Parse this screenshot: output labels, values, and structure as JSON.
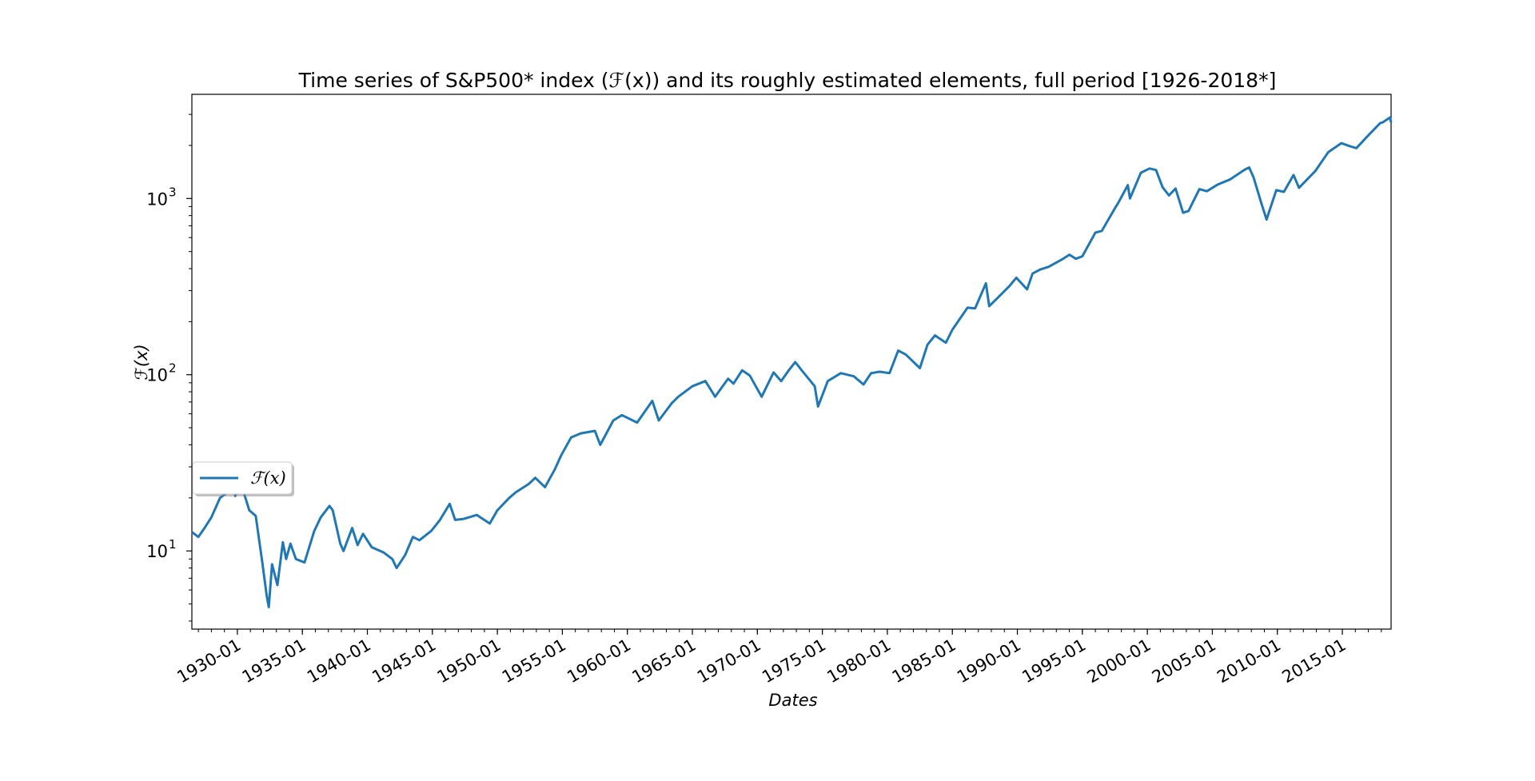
{
  "chart_data": {
    "type": "line",
    "title": "Time series of S&P500* index (ℱ(x)) and its roughly estimated elements, full period [1926-2018*]",
    "xlabel": "Dates",
    "ylabel": "ℱ(x)",
    "yscale": "log",
    "xlim": [
      "1926-07",
      "2018-10"
    ],
    "ylim": [
      3.6,
      3900
    ],
    "x_ticks": [
      "1930-01",
      "1935-01",
      "1940-01",
      "1945-01",
      "1950-01",
      "1955-01",
      "1960-01",
      "1965-01",
      "1970-01",
      "1975-01",
      "1980-01",
      "1985-01",
      "1990-01",
      "1995-01",
      "2000-01",
      "2005-01",
      "2010-01",
      "2015-01"
    ],
    "y_ticks": [
      {
        "value": 10,
        "label": "10",
        "exp": "1"
      },
      {
        "value": 100,
        "label": "10",
        "exp": "2"
      },
      {
        "value": 1000,
        "label": "10",
        "exp": "3"
      }
    ],
    "grid": false,
    "legend_position": "center-left",
    "color": "#1f77b4",
    "series": [
      {
        "name": "ℱ(x)",
        "points": [
          [
            "1926-07",
            12.8
          ],
          [
            "1927-01",
            12.0
          ],
          [
            "1927-06",
            13.3
          ],
          [
            "1928-01",
            15.5
          ],
          [
            "1928-09",
            20.0
          ],
          [
            "1929-04",
            21.5
          ],
          [
            "1929-09",
            30.0
          ],
          [
            "1929-11",
            20.5
          ],
          [
            "1930-04",
            24.5
          ],
          [
            "1930-12",
            17.0
          ],
          [
            "1931-06",
            15.8
          ],
          [
            "1931-12",
            8.6
          ],
          [
            "1932-04",
            5.6
          ],
          [
            "1932-06",
            4.8
          ],
          [
            "1932-09",
            8.4
          ],
          [
            "1933-02",
            6.4
          ],
          [
            "1933-07",
            11.2
          ],
          [
            "1933-10",
            9.0
          ],
          [
            "1934-02",
            11.0
          ],
          [
            "1934-07",
            9.0
          ],
          [
            "1935-03",
            8.6
          ],
          [
            "1935-12",
            13.0
          ],
          [
            "1936-06",
            15.5
          ],
          [
            "1937-02",
            18.0
          ],
          [
            "1937-05",
            17.0
          ],
          [
            "1937-12",
            11.0
          ],
          [
            "1938-03",
            10.0
          ],
          [
            "1938-11",
            13.5
          ],
          [
            "1939-04",
            10.8
          ],
          [
            "1939-09",
            12.5
          ],
          [
            "1940-05",
            10.5
          ],
          [
            "1941-04",
            9.8
          ],
          [
            "1941-12",
            9.0
          ],
          [
            "1942-04",
            8.0
          ],
          [
            "1942-12",
            9.5
          ],
          [
            "1943-07",
            12.0
          ],
          [
            "1944-01",
            11.5
          ],
          [
            "1944-12",
            13.0
          ],
          [
            "1945-08",
            15.0
          ],
          [
            "1946-05",
            18.5
          ],
          [
            "1946-10",
            15.0
          ],
          [
            "1947-06",
            15.2
          ],
          [
            "1948-06",
            16.0
          ],
          [
            "1949-06",
            14.3
          ],
          [
            "1950-01",
            17.0
          ],
          [
            "1950-12",
            20.0
          ],
          [
            "1951-06",
            21.5
          ],
          [
            "1952-06",
            24.0
          ],
          [
            "1952-12",
            26.0
          ],
          [
            "1953-09",
            23.0
          ],
          [
            "1954-06",
            29.0
          ],
          [
            "1954-12",
            35.0
          ],
          [
            "1955-09",
            44.0
          ],
          [
            "1956-06",
            46.5
          ],
          [
            "1957-07",
            48.0
          ],
          [
            "1957-12",
            40.0
          ],
          [
            "1958-12",
            55.0
          ],
          [
            "1959-08",
            59.0
          ],
          [
            "1960-10",
            53.5
          ],
          [
            "1961-12",
            71.0
          ],
          [
            "1962-06",
            55.0
          ],
          [
            "1963-06",
            69.0
          ],
          [
            "1963-12",
            75.0
          ],
          [
            "1965-01",
            86.0
          ],
          [
            "1966-01",
            92.0
          ],
          [
            "1966-10",
            75.0
          ],
          [
            "1967-10",
            95.0
          ],
          [
            "1968-03",
            89.0
          ],
          [
            "1968-11",
            106.0
          ],
          [
            "1969-06",
            99.0
          ],
          [
            "1970-05",
            75.0
          ],
          [
            "1971-04",
            103.0
          ],
          [
            "1971-11",
            92.0
          ],
          [
            "1972-06",
            106.0
          ],
          [
            "1972-12",
            118.0
          ],
          [
            "1973-07",
            104.0
          ],
          [
            "1974-06",
            86.0
          ],
          [
            "1974-09",
            66.0
          ],
          [
            "1975-06",
            92.0
          ],
          [
            "1976-06",
            102.0
          ],
          [
            "1977-06",
            98.0
          ],
          [
            "1978-03",
            88.0
          ],
          [
            "1978-10",
            102.0
          ],
          [
            "1979-06",
            104.0
          ],
          [
            "1980-03",
            102.0
          ],
          [
            "1980-11",
            137.0
          ],
          [
            "1981-06",
            130.0
          ],
          [
            "1982-07",
            109.0
          ],
          [
            "1983-02",
            148.0
          ],
          [
            "1983-09",
            167.0
          ],
          [
            "1984-07",
            152.0
          ],
          [
            "1985-01",
            180.0
          ],
          [
            "1986-03",
            240.0
          ],
          [
            "1986-10",
            238.0
          ],
          [
            "1987-08",
            330.0
          ],
          [
            "1987-11",
            245.0
          ],
          [
            "1988-06",
            270.0
          ],
          [
            "1989-06",
            320.0
          ],
          [
            "1989-12",
            355.0
          ],
          [
            "1990-10",
            305.0
          ],
          [
            "1991-03",
            375.0
          ],
          [
            "1991-10",
            395.0
          ],
          [
            "1992-06",
            410.0
          ],
          [
            "1993-06",
            450.0
          ],
          [
            "1994-01",
            480.0
          ],
          [
            "1994-07",
            455.0
          ],
          [
            "1995-01",
            470.0
          ],
          [
            "1996-01",
            640.0
          ],
          [
            "1996-07",
            655.0
          ],
          [
            "1997-08",
            900.0
          ],
          [
            "1997-10",
            940.0
          ],
          [
            "1998-07",
            1190.0
          ],
          [
            "1998-09",
            1000.0
          ],
          [
            "1999-07",
            1400.0
          ],
          [
            "2000-03",
            1480.0
          ],
          [
            "2000-09",
            1450.0
          ],
          [
            "2001-03",
            1160.0
          ],
          [
            "2001-09",
            1040.0
          ],
          [
            "2002-03",
            1140.0
          ],
          [
            "2002-10",
            830.0
          ],
          [
            "2003-03",
            850.0
          ],
          [
            "2004-01",
            1130.0
          ],
          [
            "2004-08",
            1100.0
          ],
          [
            "2005-06",
            1200.0
          ],
          [
            "2006-05",
            1280.0
          ],
          [
            "2007-07",
            1460.0
          ],
          [
            "2007-11",
            1500.0
          ],
          [
            "2008-03",
            1320.0
          ],
          [
            "2008-10",
            950.0
          ],
          [
            "2009-03",
            760.0
          ],
          [
            "2009-12",
            1115.0
          ],
          [
            "2010-07",
            1090.0
          ],
          [
            "2011-04",
            1360.0
          ],
          [
            "2011-09",
            1150.0
          ],
          [
            "2012-12",
            1430.0
          ],
          [
            "2013-12",
            1830.0
          ],
          [
            "2014-12",
            2060.0
          ],
          [
            "2015-08",
            1980.0
          ],
          [
            "2016-02",
            1930.0
          ],
          [
            "2016-12",
            2250.0
          ],
          [
            "2017-12",
            2680.0
          ],
          [
            "2018-02",
            2700.0
          ],
          [
            "2018-09",
            2880.0
          ],
          [
            "2018-10",
            2700.0
          ]
        ]
      }
    ]
  }
}
